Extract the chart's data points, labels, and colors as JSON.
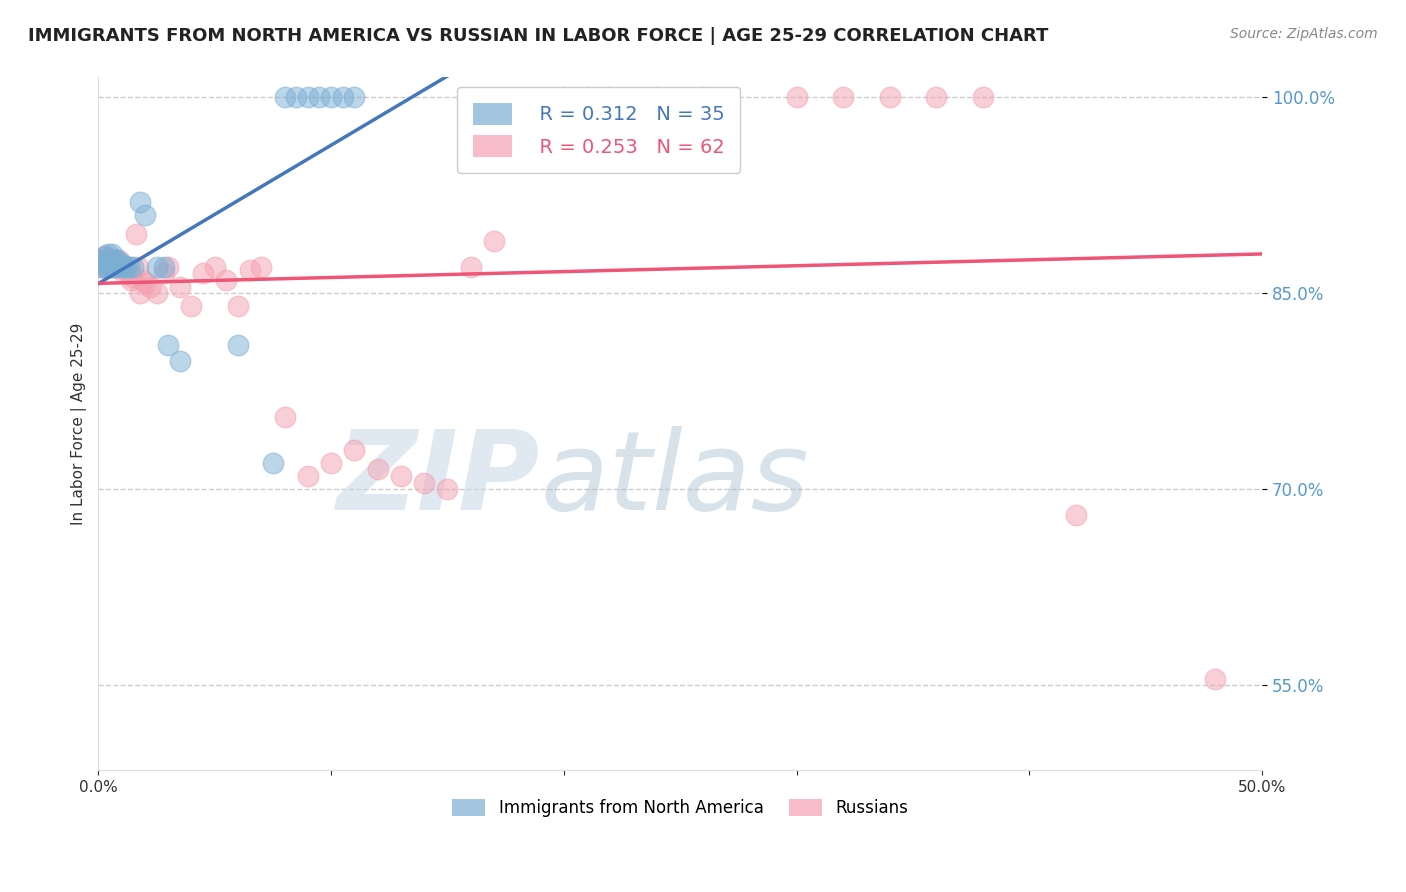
{
  "title": "IMMIGRANTS FROM NORTH AMERICA VS RUSSIAN IN LABOR FORCE | AGE 25-29 CORRELATION CHART",
  "source": "Source: ZipAtlas.com",
  "ylabel": "In Labor Force | Age 25-29",
  "xlim": [
    0.0,
    0.5
  ],
  "ylim": [
    0.485,
    1.015
  ],
  "yticks": [
    0.55,
    0.7,
    0.85,
    1.0
  ],
  "blue_color": "#7BAFD4",
  "pink_color": "#F4A0B0",
  "blue_line_color": "#4477BB",
  "pink_line_color": "#EE5577",
  "legend_R_blue": "R = 0.312",
  "legend_N_blue": "N = 35",
  "legend_R_pink": "R = 0.253",
  "legend_N_pink": "N = 62",
  "blue_scatter_x": [
    0.001,
    0.002,
    0.003,
    0.003,
    0.004,
    0.004,
    0.005,
    0.005,
    0.006,
    0.006,
    0.007,
    0.007,
    0.008,
    0.008,
    0.009,
    0.01,
    0.011,
    0.012,
    0.013,
    0.015,
    0.018,
    0.02,
    0.025,
    0.028,
    0.03,
    0.035,
    0.06,
    0.075,
    0.08,
    0.085,
    0.09,
    0.095,
    0.1,
    0.105,
    0.11
  ],
  "blue_scatter_y": [
    0.87,
    0.875,
    0.87,
    0.878,
    0.87,
    0.88,
    0.872,
    0.875,
    0.87,
    0.88,
    0.87,
    0.875,
    0.873,
    0.875,
    0.87,
    0.872,
    0.87,
    0.87,
    0.87,
    0.87,
    0.92,
    0.91,
    0.87,
    0.87,
    0.81,
    0.798,
    0.81,
    0.72,
    1.0,
    1.0,
    1.0,
    1.0,
    1.0,
    1.0,
    1.0
  ],
  "pink_scatter_x": [
    0.001,
    0.001,
    0.002,
    0.002,
    0.003,
    0.003,
    0.004,
    0.004,
    0.005,
    0.005,
    0.006,
    0.006,
    0.007,
    0.007,
    0.008,
    0.008,
    0.009,
    0.01,
    0.011,
    0.012,
    0.013,
    0.014,
    0.015,
    0.016,
    0.017,
    0.018,
    0.019,
    0.02,
    0.022,
    0.025,
    0.028,
    0.03,
    0.035,
    0.04,
    0.045,
    0.05,
    0.055,
    0.06,
    0.065,
    0.07,
    0.08,
    0.09,
    0.1,
    0.11,
    0.12,
    0.13,
    0.14,
    0.15,
    0.16,
    0.17,
    0.2,
    0.21,
    0.22,
    0.24,
    0.26,
    0.3,
    0.32,
    0.34,
    0.36,
    0.38,
    0.42,
    0.48
  ],
  "pink_scatter_y": [
    0.87,
    0.875,
    0.872,
    0.875,
    0.87,
    0.878,
    0.873,
    0.877,
    0.87,
    0.875,
    0.87,
    0.873,
    0.871,
    0.875,
    0.87,
    0.873,
    0.875,
    0.87,
    0.865,
    0.868,
    0.87,
    0.86,
    0.862,
    0.895,
    0.87,
    0.85,
    0.86,
    0.858,
    0.855,
    0.85,
    0.865,
    0.87,
    0.855,
    0.84,
    0.865,
    0.87,
    0.86,
    0.84,
    0.868,
    0.87,
    0.755,
    0.71,
    0.72,
    0.73,
    0.715,
    0.71,
    0.705,
    0.7,
    0.87,
    0.89,
    1.0,
    1.0,
    1.0,
    1.0,
    1.0,
    1.0,
    1.0,
    1.0,
    1.0,
    1.0,
    0.68,
    0.555
  ],
  "watermark_zip": "ZIP",
  "watermark_atlas": "atlas",
  "background_color": "#FFFFFF",
  "grid_color": "#CCCCCC",
  "title_color": "#222222",
  "axis_label_color": "#333333",
  "right_ytick_color": "#5599CC",
  "title_fontsize": 13,
  "source_fontsize": 10,
  "axis_label_fontsize": 11,
  "tick_fontsize": 11
}
